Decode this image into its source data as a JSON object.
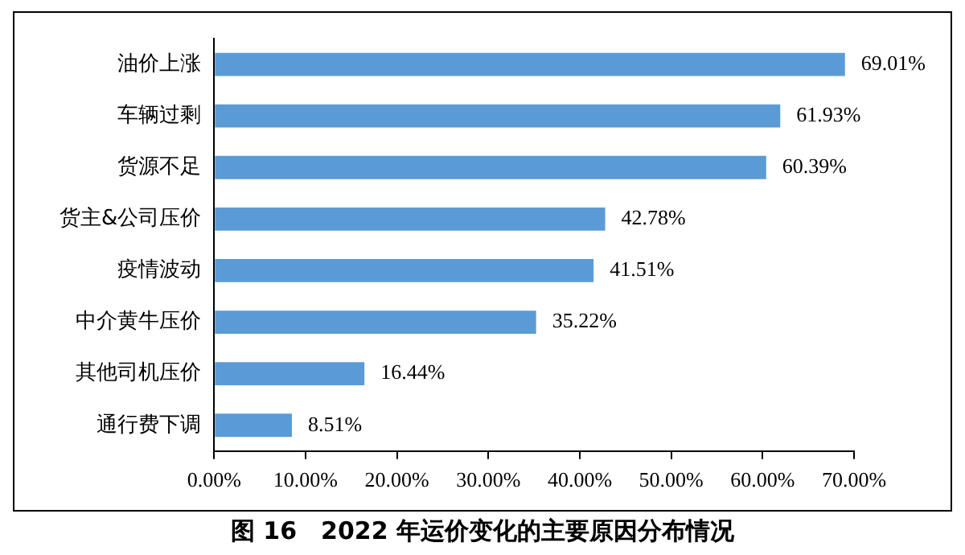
{
  "chart_data": {
    "type": "bar",
    "orientation": "horizontal",
    "title": "图 16　2022 年运价变化的主要原因分布情况",
    "categories": [
      "油价上涨",
      "车辆过剩",
      "货源不足",
      "货主&公司压价",
      "疫情波动",
      "中介黄牛压价",
      "其他司机压价",
      "通行费下调"
    ],
    "values": [
      69.01,
      61.93,
      60.39,
      42.78,
      41.51,
      35.22,
      16.44,
      8.51
    ],
    "value_labels": [
      "69.01%",
      "61.93%",
      "60.39%",
      "42.78%",
      "41.51%",
      "35.22%",
      "16.44%",
      "8.51%"
    ],
    "color": "#5b9bd5",
    "xlim": [
      0,
      70
    ],
    "xticks": [
      {
        "value": 0,
        "label": "0.00%"
      },
      {
        "value": 10,
        "label": "10.00%"
      },
      {
        "value": 20,
        "label": "20.00%"
      },
      {
        "value": 30,
        "label": "30.00%"
      },
      {
        "value": 40,
        "label": "40.00%"
      },
      {
        "value": 50,
        "label": "50.00%"
      },
      {
        "value": 60,
        "label": "60.00%"
      },
      {
        "value": 70,
        "label": "70.00%"
      }
    ],
    "grid": false,
    "legend": false
  }
}
